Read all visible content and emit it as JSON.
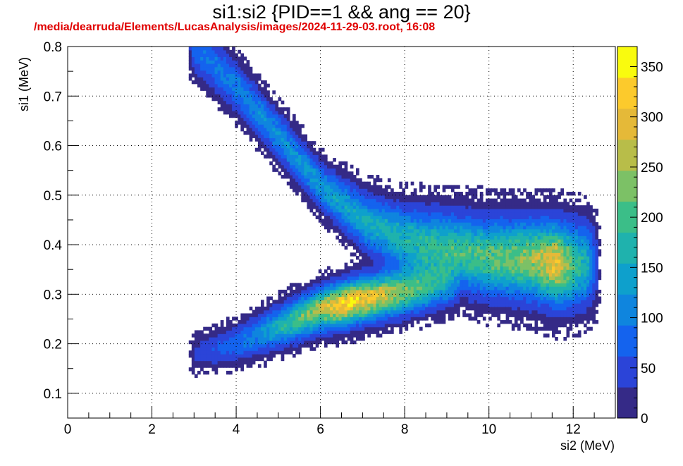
{
  "chart_data": {
    "type": "heatmap",
    "title": "si1:si2 {PID==1 && ang == 20}",
    "subtitle": "/media/dearruda/Elements/LucasAnalysis/images/2024-11-29-03.root,  16:08",
    "xlabel": "si2 (MeV)",
    "ylabel": "si1 (MeV)",
    "xlim": [
      0,
      13
    ],
    "ylim": [
      0.05,
      0.8
    ],
    "x_ticks": [
      "0",
      "2",
      "4",
      "6",
      "8",
      "10",
      "12"
    ],
    "y_ticks": [
      "0.1",
      "0.2",
      "0.3",
      "0.4",
      "0.5",
      "0.6",
      "0.7",
      "0.8"
    ],
    "z_range": [
      0,
      370
    ],
    "z_ticks": [
      "0",
      "50",
      "100",
      "150",
      "200",
      "250",
      "300",
      "350"
    ],
    "grid": true,
    "colormap": [
      "#352a87",
      "#2b44d8",
      "#1463ee",
      "#0f85de",
      "#0ea0cc",
      "#1fb2ad",
      "#3bbe88",
      "#7cc166",
      "#b8bd49",
      "#e5b938",
      "#fcca2c",
      "#f9fb0e"
    ],
    "bands": [
      {
        "name": "upper-branch",
        "centerline": [
          [
            3.0,
            0.8
          ],
          [
            4.0,
            0.72
          ],
          [
            5.0,
            0.62
          ],
          [
            6.0,
            0.52
          ],
          [
            7.0,
            0.45
          ],
          [
            8.0,
            0.41
          ],
          [
            9.0,
            0.39
          ],
          [
            10.0,
            0.375
          ],
          [
            11.0,
            0.37
          ],
          [
            11.8,
            0.36
          ],
          [
            12.3,
            0.36
          ]
        ],
        "halfwidth": [
          [
            3.0,
            0.07
          ],
          [
            6.0,
            0.06
          ],
          [
            9.0,
            0.1
          ],
          [
            12.0,
            0.11
          ]
        ],
        "peak": [
          [
            3.0,
            90
          ],
          [
            6.0,
            130
          ],
          [
            8.0,
            170
          ],
          [
            10.0,
            210
          ],
          [
            11.0,
            240
          ],
          [
            11.6,
            300
          ],
          [
            12.2,
            170
          ]
        ]
      },
      {
        "name": "lower-branch",
        "centerline": [
          [
            3.0,
            0.18
          ],
          [
            4.0,
            0.2
          ],
          [
            5.0,
            0.235
          ],
          [
            6.0,
            0.27
          ],
          [
            7.0,
            0.29
          ],
          [
            8.0,
            0.305
          ],
          [
            9.0,
            0.32
          ]
        ],
        "halfwidth": [
          [
            3.0,
            0.045
          ],
          [
            5.0,
            0.055
          ],
          [
            7.0,
            0.06
          ],
          [
            9.0,
            0.06
          ]
        ],
        "peak": [
          [
            3.0,
            35
          ],
          [
            4.5,
            110
          ],
          [
            6.0,
            260
          ],
          [
            6.6,
            330
          ],
          [
            7.5,
            280
          ],
          [
            8.5,
            170
          ],
          [
            9.0,
            100
          ]
        ]
      }
    ]
  }
}
